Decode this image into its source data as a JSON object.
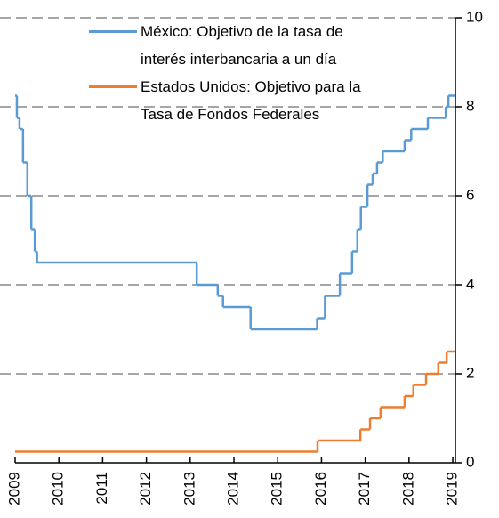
{
  "chart_data": {
    "type": "line",
    "step": "post",
    "xlim": [
      2009,
      2019.06
    ],
    "xticks": [
      2009,
      2010,
      2011,
      2012,
      2013,
      2014,
      2015,
      2016,
      2017,
      2018,
      2019
    ],
    "ylim": [
      0,
      10
    ],
    "yticks": [
      0,
      2,
      4,
      6,
      8,
      10
    ],
    "grid": true,
    "series": [
      {
        "name": "México: Objetivo de la tasa de interés interbancaria a un día",
        "color": "#5b9bd5",
        "x": [
          2009,
          2009.04,
          2009.1,
          2009.18,
          2009.28,
          2009.37,
          2009.45,
          2009.5,
          2013.15,
          2013.63,
          2013.75,
          2014.38,
          2015.9,
          2016.08,
          2016.42,
          2016.7,
          2016.82,
          2016.9,
          2017.05,
          2017.17,
          2017.27,
          2017.4,
          2017.9,
          2018.05,
          2018.43,
          2018.84,
          2018.9
        ],
        "values": [
          8.25,
          7.75,
          7.5,
          6.75,
          6.0,
          5.25,
          4.75,
          4.5,
          4.0,
          3.75,
          3.5,
          3.0,
          3.25,
          3.75,
          4.25,
          4.75,
          5.25,
          5.75,
          6.25,
          6.5,
          6.75,
          7.0,
          7.25,
          7.5,
          7.75,
          8.0,
          8.25
        ]
      },
      {
        "name": "Estados Unidos: Objetivo para la Tasa de Fondos Federales",
        "color": "#ed7d31",
        "x": [
          2009,
          2015.91,
          2016.89,
          2017.11,
          2017.35,
          2017.9,
          2018.1,
          2018.39,
          2018.67,
          2018.86
        ],
        "values": [
          0.25,
          0.5,
          0.75,
          1.0,
          1.25,
          1.5,
          1.75,
          2.0,
          2.25,
          2.5
        ]
      }
    ]
  }
}
